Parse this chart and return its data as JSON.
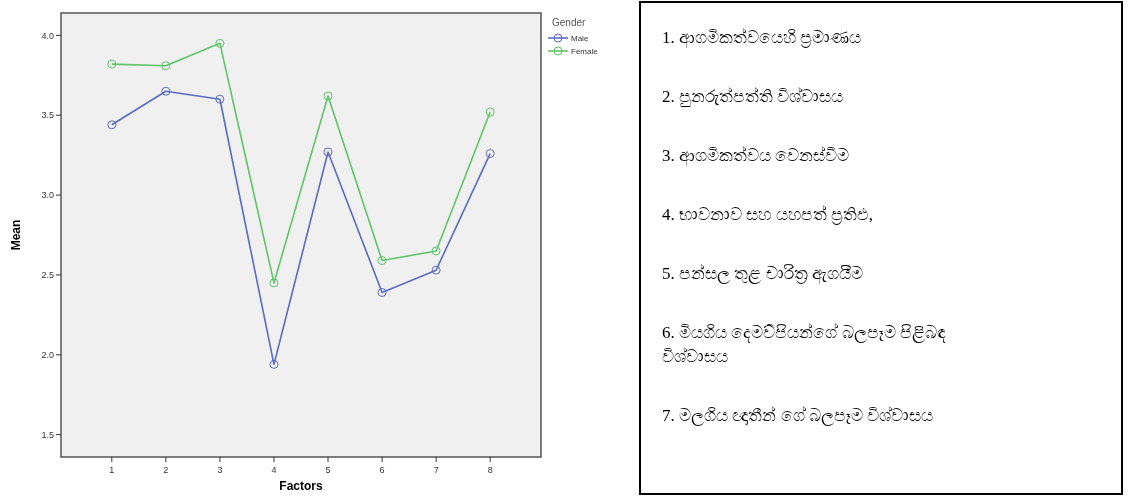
{
  "chart_data": [
    {
      "type": "line",
      "xlabel": "Factors",
      "ylabel": "Mean",
      "legend_title": "Gender",
      "legend": "top right",
      "marker": "circle",
      "line_style": "solid",
      "grid": false,
      "categories": [
        "1",
        "2",
        "3",
        "4",
        "5",
        "6",
        "7",
        "8"
      ],
      "ylim": [
        1.36,
        4.14
      ],
      "yticks": [
        {
          "value": 1.5,
          "label": "1.5"
        },
        {
          "value": 2,
          "label": "2.0"
        },
        {
          "value": 2.5,
          "label": "2.5"
        },
        {
          "value": 3,
          "label": "3.0"
        },
        {
          "value": 3.5,
          "label": "3.5"
        },
        {
          "value": 4,
          "label": "4.0"
        }
      ],
      "series": [
        {
          "name": "Male",
          "color": "#5b6bbf",
          "values": [
            3.44,
            3.65,
            3.6,
            1.94,
            3.27,
            2.39,
            2.53,
            3.26
          ]
        },
        {
          "name": "Female",
          "color": "#5fc46a",
          "values": [
            3.82,
            3.81,
            3.95,
            2.45,
            3.62,
            2.59,
            2.65,
            3.52
          ]
        }
      ]
    },
    {
      "type": "other",
      "annotations": [
        "1. ආගමිකත්වයෙහි ප්‍රමාණය",
        "2. පුනරුත්පත්ති විශ්වාසය",
        "3. ආගමිකත්වය වෙනස්වීම",
        "4. භාවනාව සහ යහපත් ප්‍රතිඵ,",
        "5. පන්සල තුළ චාරිත්‍ර ඇගයීම",
        "6. මියගිය දෙමව්පියන්ගේ බලපෑම පිළිබඳ විශ්වාසය",
        "7. මලගිය ඥාතීන් ගේ බලපෑම විශ්වාසය"
      ]
    }
  ]
}
